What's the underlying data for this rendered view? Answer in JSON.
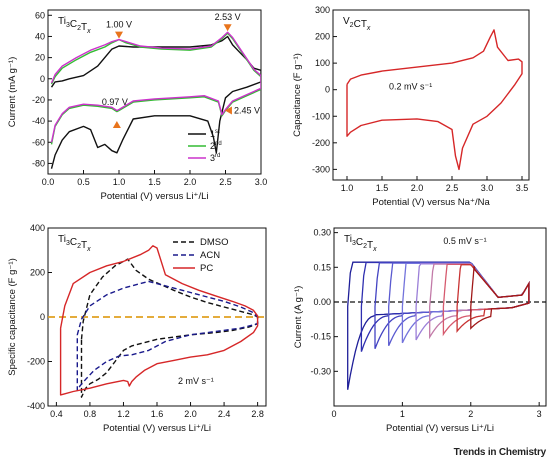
{
  "footer": "Trends in Chemistry",
  "chart_data": [
    {
      "type": "line",
      "material_label": "Ti3C2Tx",
      "xlabel": "Potential (V) versus Li⁺/Li",
      "ylabel": "Current (mA g⁻¹)",
      "xlim": [
        0,
        3.0
      ],
      "ylim": [
        -90,
        65
      ],
      "xticks": [
        0.0,
        0.5,
        1.0,
        1.5,
        2.0,
        2.5,
        3.0
      ],
      "yticks": [
        -80,
        -60,
        -40,
        -20,
        0,
        20,
        40,
        60
      ],
      "xtick_labels": [
        "0.0",
        "0.5",
        "1.0",
        "1.5",
        "2.0",
        "2.5",
        "3.0"
      ],
      "ytick_labels": [
        "-80",
        "-60",
        "-40",
        "-20",
        "0",
        "20",
        "40",
        "60"
      ],
      "legend": [
        "1st",
        "2nd",
        "3rd"
      ],
      "legend_position": "right",
      "annotations": [
        {
          "text": "1.00 V",
          "x": 1.0,
          "y": 37,
          "arrow": "down"
        },
        {
          "text": "2.53 V",
          "x": 2.53,
          "y": 44,
          "arrow": "down"
        },
        {
          "text": "0.97 V",
          "x": 0.97,
          "y": -38,
          "arrow": "up"
        },
        {
          "text": "2.45 V",
          "x": 2.45,
          "y": -30,
          "arrow": "left"
        }
      ],
      "series": [
        {
          "name": "1st",
          "color": "#111111",
          "x": [
            0.05,
            0.1,
            0.2,
            0.3,
            0.5,
            0.7,
            0.9,
            1.0,
            1.2,
            1.5,
            2.0,
            2.3,
            2.45,
            2.53,
            2.6,
            2.7,
            2.8,
            2.9,
            3.0,
            3.0,
            2.8,
            2.6,
            2.5,
            2.42,
            2.37,
            2.33,
            2.25,
            2.0,
            1.5,
            1.2,
            1.05,
            0.97,
            0.9,
            0.8,
            0.7,
            0.6,
            0.5,
            0.3,
            0.2,
            0.1,
            0.05
          ],
          "y": [
            -8,
            -3,
            -2,
            0,
            3,
            12,
            28,
            31,
            30,
            30,
            30,
            32,
            36,
            40,
            32,
            25,
            18,
            10,
            8,
            -3,
            -8,
            -12,
            -18,
            -40,
            -70,
            -55,
            -40,
            -35,
            -35,
            -38,
            -58,
            -70,
            -68,
            -62,
            -65,
            -48,
            -45,
            -50,
            -58,
            -72,
            -85
          ]
        },
        {
          "name": "2nd",
          "color": "#33bb33",
          "x": [
            0.05,
            0.1,
            0.2,
            0.4,
            0.6,
            0.8,
            0.9,
            1.0,
            1.1,
            1.3,
            1.6,
            2.0,
            2.3,
            2.45,
            2.53,
            2.6,
            2.7,
            2.8,
            2.9,
            3.0,
            3.0,
            2.8,
            2.6,
            2.5,
            2.45,
            2.4,
            2.2,
            2.0,
            1.5,
            1.2,
            1.0,
            0.97,
            0.9,
            0.7,
            0.5,
            0.3,
            0.2,
            0.1,
            0.05
          ],
          "y": [
            -5,
            2,
            10,
            18,
            25,
            30,
            34,
            37,
            34,
            30,
            28,
            27,
            30,
            38,
            43,
            38,
            28,
            18,
            8,
            2,
            -10,
            -16,
            -22,
            -30,
            -35,
            -22,
            -17,
            -18,
            -20,
            -22,
            -30,
            -31,
            -28,
            -26,
            -25,
            -28,
            -34,
            -45,
            -62
          ]
        },
        {
          "name": "3rd",
          "color": "#cc33cc",
          "x": [
            0.05,
            0.1,
            0.2,
            0.4,
            0.6,
            0.8,
            0.9,
            1.0,
            1.1,
            1.3,
            1.6,
            2.0,
            2.3,
            2.45,
            2.53,
            2.6,
            2.7,
            2.8,
            2.9,
            3.0,
            3.0,
            2.8,
            2.6,
            2.5,
            2.45,
            2.4,
            2.2,
            2.0,
            1.5,
            1.2,
            1.0,
            0.97,
            0.9,
            0.7,
            0.5,
            0.3,
            0.2,
            0.1,
            0.05
          ],
          "y": [
            -4,
            4,
            12,
            20,
            27,
            32,
            35,
            37,
            35,
            31,
            29,
            28,
            31,
            39,
            44,
            39,
            29,
            19,
            9,
            3,
            -9,
            -15,
            -21,
            -29,
            -34,
            -21,
            -16,
            -17,
            -19,
            -21,
            -29,
            -30,
            -27,
            -25,
            -24,
            -27,
            -33,
            -44,
            -60
          ]
        }
      ]
    },
    {
      "type": "line",
      "material_label": "V2CTx",
      "xlabel": "Potential (V) versus Na⁺/Na",
      "ylabel": "Capacitance (F g⁻¹)",
      "xlim": [
        0.8,
        3.6
      ],
      "ylim": [
        -340,
        300
      ],
      "xticks": [
        1.0,
        1.5,
        2.0,
        2.5,
        3.0,
        3.5
      ],
      "yticks": [
        -300,
        -200,
        -100,
        0,
        100,
        200,
        300
      ],
      "xtick_labels": [
        "1.0",
        "1.5",
        "2.0",
        "2.5",
        "3.0",
        "3.5"
      ],
      "ytick_labels": [
        "-300",
        "-200",
        "-100",
        "0",
        "100",
        "200",
        "300"
      ],
      "annotations": [
        {
          "text": "0.2 mV s⁻¹",
          "x": 1.6,
          "y": 0
        }
      ],
      "series": [
        {
          "name": "",
          "color": "#d62728",
          "x": [
            1.0,
            1.05,
            1.2,
            1.5,
            2.0,
            2.5,
            2.8,
            2.95,
            3.05,
            3.1,
            3.15,
            3.3,
            3.45,
            3.5,
            3.5,
            3.4,
            3.2,
            3.0,
            2.8,
            2.65,
            2.6,
            2.55,
            2.5,
            2.3,
            2.0,
            1.5,
            1.2,
            1.05,
            1.0,
            1.0
          ],
          "y": [
            20,
            40,
            55,
            70,
            85,
            100,
            120,
            145,
            200,
            225,
            160,
            110,
            115,
            105,
            60,
            20,
            -50,
            -100,
            -130,
            -220,
            -300,
            -250,
            -150,
            -120,
            -110,
            -115,
            -135,
            -160,
            -175,
            20
          ]
        }
      ]
    },
    {
      "type": "line",
      "material_label": "Ti3C2Tx",
      "xlabel": "Potential (V) versus Li⁺/Li",
      "ylabel": "Specific capacitance (F g⁻¹)",
      "xlim": [
        0.3,
        2.9
      ],
      "ylim": [
        -400,
        400
      ],
      "xticks": [
        0.4,
        0.8,
        1.2,
        1.6,
        2.0,
        2.4,
        2.8
      ],
      "yticks": [
        -400,
        -200,
        0,
        200,
        400
      ],
      "xtick_labels": [
        "0.4",
        "0.8",
        "1.2",
        "1.6",
        "2.0",
        "2.4",
        "2.8"
      ],
      "ytick_labels": [
        "-400",
        "-200",
        "0",
        "200",
        "400"
      ],
      "legend": [
        "DMSO",
        "ACN",
        "PC"
      ],
      "legend_position": "top-right",
      "reference_line": {
        "y": 0,
        "color": "#e0a020"
      },
      "annotations": [
        {
          "text": "2 mV s⁻¹",
          "x": 1.85,
          "y": -300
        }
      ],
      "series": [
        {
          "name": "DMSO",
          "color": "#111111",
          "dash": true,
          "x": [
            0.7,
            0.72,
            0.8,
            0.95,
            1.1,
            1.25,
            1.35,
            1.5,
            1.8,
            2.0,
            2.2,
            2.4,
            2.6,
            2.75,
            2.8,
            2.8,
            2.7,
            2.5,
            2.3,
            2.0,
            1.6,
            1.3,
            1.2,
            1.1,
            1.0,
            0.9,
            0.8,
            0.75,
            0.7,
            0.7
          ],
          "y": [
            -100,
            -20,
            100,
            180,
            230,
            260,
            210,
            170,
            120,
            90,
            65,
            45,
            25,
            10,
            0,
            -30,
            -45,
            -60,
            -70,
            -80,
            -100,
            -130,
            -150,
            -200,
            -250,
            -280,
            -300,
            -320,
            -360,
            -100
          ]
        },
        {
          "name": "ACN",
          "color": "#1a1a8c",
          "dash": true,
          "x": [
            0.65,
            0.7,
            0.8,
            1.0,
            1.2,
            1.4,
            1.5,
            1.8,
            2.0,
            2.2,
            2.4,
            2.6,
            2.75,
            2.8,
            2.8,
            2.6,
            2.3,
            2.0,
            1.7,
            1.5,
            1.3,
            1.15,
            1.0,
            0.85,
            0.75,
            0.68,
            0.65,
            0.65
          ],
          "y": [
            -80,
            -10,
            50,
            100,
            130,
            150,
            160,
            130,
            110,
            90,
            70,
            45,
            20,
            0,
            -30,
            -50,
            -65,
            -80,
            -110,
            -150,
            -170,
            -175,
            -200,
            -240,
            -280,
            -310,
            -330,
            -80
          ]
        },
        {
          "name": "PC",
          "color": "#d62728",
          "dash": false,
          "x": [
            0.45,
            0.5,
            0.6,
            0.8,
            1.0,
            1.2,
            1.4,
            1.5,
            1.55,
            1.6,
            1.7,
            1.9,
            2.1,
            2.3,
            2.5,
            2.65,
            2.75,
            2.8,
            2.8,
            2.75,
            2.6,
            2.4,
            2.2,
            2.0,
            1.8,
            1.6,
            1.45,
            1.35,
            1.3,
            1.27,
            1.25,
            1.2,
            1.0,
            0.8,
            0.6,
            0.5,
            0.45,
            0.45
          ],
          "y": [
            -50,
            50,
            150,
            200,
            230,
            250,
            280,
            300,
            320,
            310,
            190,
            150,
            120,
            95,
            70,
            50,
            30,
            5,
            -40,
            -70,
            -110,
            -150,
            -170,
            -180,
            -195,
            -210,
            -240,
            -270,
            -290,
            -310,
            -290,
            -285,
            -300,
            -320,
            -335,
            -345,
            -350,
            -50
          ]
        }
      ]
    },
    {
      "type": "line",
      "material_label": "Ti3C2Tx",
      "xlabel": "Potential (V) versus Li⁺/Li",
      "ylabel": "Current (A g⁻¹)",
      "xlim": [
        0,
        3.1
      ],
      "ylim": [
        -0.45,
        0.32
      ],
      "xticks": [
        0,
        1,
        2,
        3
      ],
      "yticks": [
        -0.3,
        -0.15,
        0.0,
        0.15,
        0.3
      ],
      "xtick_labels": [
        "0",
        "1",
        "2",
        "3"
      ],
      "ytick_labels": [
        "-0.30",
        "-0.15",
        "0.00",
        "0.15",
        "0.30"
      ],
      "reference_line": {
        "y": 0,
        "color": "#111111"
      },
      "annotations": [
        {
          "text": "0.5 mV s⁻¹",
          "x": 1.6,
          "y": 0.25
        }
      ],
      "series": [
        {
          "name": "",
          "color": "#1f1f99",
          "vmin": 0.2
        },
        {
          "name": "",
          "color": "#2f2fb0",
          "vmin": 0.4
        },
        {
          "name": "",
          "color": "#4343c2",
          "vmin": 0.6
        },
        {
          "name": "",
          "color": "#5a5ad0",
          "vmin": 0.8
        },
        {
          "name": "",
          "color": "#7373dc",
          "vmin": 1.0
        },
        {
          "name": "",
          "color": "#9b7fd8",
          "vmin": 1.2
        },
        {
          "name": "",
          "color": "#c27aa8",
          "vmin": 1.4
        },
        {
          "name": "",
          "color": "#d65a6e",
          "vmin": 1.6
        },
        {
          "name": "",
          "color": "#c83232",
          "vmin": 1.8
        },
        {
          "name": "",
          "color": "#a01818",
          "vmin": 2.0
        }
      ]
    }
  ]
}
